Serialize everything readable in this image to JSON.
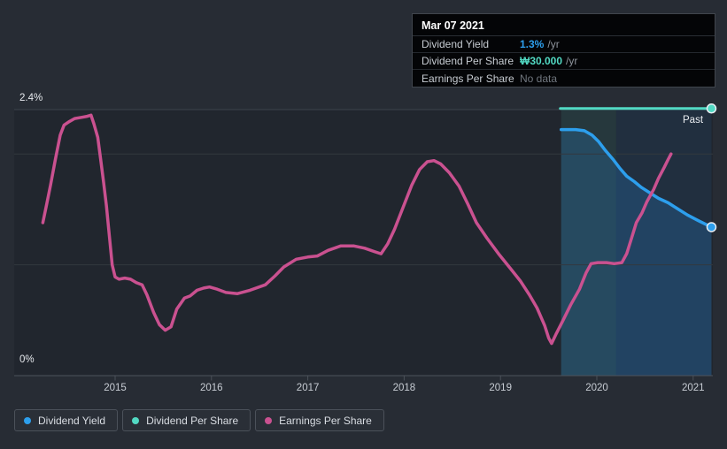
{
  "colors": {
    "dividend_yield": "#2d9fed",
    "dividend_per_share": "#52d9c3",
    "earnings_per_share": "#ca5190",
    "no_data": "#70767e",
    "dividend_yield_area": "rgba(43,140,225,0.22)",
    "region_past_early": "rgba(86,220,193,0.10)",
    "region_final_year": "rgba(43,130,220,0.10)"
  },
  "tooltip": {
    "title": "Mar 07 2021",
    "rows": [
      {
        "label": "Dividend Yield",
        "value": "1.3%",
        "unit": "/yr",
        "color_key": "dividend_yield",
        "bold": true
      },
      {
        "label": "Dividend Per Share",
        "value": "₩30.000",
        "unit": "/yr",
        "color_key": "dividend_per_share",
        "bold": true
      },
      {
        "label": "Earnings Per Share",
        "value": "No data",
        "unit": "",
        "color_key": "no_data",
        "bold": false
      }
    ]
  },
  "past_label": "Past",
  "legend": [
    {
      "label": "Dividend Yield",
      "key": "dividend_yield"
    },
    {
      "label": "Dividend Per Share",
      "key": "dividend_per_share"
    },
    {
      "label": "Earnings Per Share",
      "key": "earnings_per_share"
    }
  ],
  "chart_data": {
    "type": "line",
    "x_axis": {
      "ticks": [
        2015,
        2016,
        2017,
        2018,
        2019,
        2020,
        2021
      ],
      "range": [
        2013.95,
        2021.2
      ]
    },
    "y_axis": {
      "top_label": "2.4%",
      "bottom_label": "0%",
      "range_pct": [
        0,
        2.4
      ],
      "gridlines_pct": [
        2.4,
        2,
        1,
        0
      ]
    },
    "regions": [
      {
        "name": "past-early",
        "from": 2019.63,
        "to": 2020.2,
        "color_key": "region_past_early"
      },
      {
        "name": "past-final-year",
        "from": 2020.2,
        "to": 2021.19,
        "color_key": "region_final_year"
      }
    ],
    "series": [
      {
        "name": "Dividend Yield",
        "key": "dividend_yield",
        "width": 3.5,
        "end_dot": true,
        "area": true,
        "points": [
          [
            2019.63,
            2.22
          ],
          [
            2019.78,
            2.22
          ],
          [
            2019.87,
            2.21
          ],
          [
            2019.95,
            2.17
          ],
          [
            2020.02,
            2.11
          ],
          [
            2020.09,
            2.03
          ],
          [
            2020.17,
            1.95
          ],
          [
            2020.24,
            1.87
          ],
          [
            2020.31,
            1.8
          ],
          [
            2020.39,
            1.75
          ],
          [
            2020.46,
            1.7
          ],
          [
            2020.55,
            1.65
          ],
          [
            2020.64,
            1.6
          ],
          [
            2020.74,
            1.56
          ],
          [
            2020.83,
            1.51
          ],
          [
            2020.94,
            1.45
          ],
          [
            2021.05,
            1.4
          ],
          [
            2021.19,
            1.34
          ]
        ]
      },
      {
        "name": "Dividend Per Share",
        "key": "dividend_per_share",
        "width": 3,
        "end_dot": true,
        "area": false,
        "actual_value": "₩30.000 /yr",
        "points": [
          [
            2019.62,
            2.41
          ],
          [
            2021.19,
            2.41
          ]
        ]
      },
      {
        "name": "Earnings Per Share",
        "key": "earnings_per_share",
        "width": 3.5,
        "end_dot": false,
        "area": false,
        "points": [
          [
            2014.25,
            1.38
          ],
          [
            2014.29,
            1.55
          ],
          [
            2014.33,
            1.72
          ],
          [
            2014.38,
            1.95
          ],
          [
            2014.43,
            2.17
          ],
          [
            2014.47,
            2.26
          ],
          [
            2014.52,
            2.29
          ],
          [
            2014.58,
            2.32
          ],
          [
            2014.65,
            2.33
          ],
          [
            2014.71,
            2.34
          ],
          [
            2014.75,
            2.35
          ],
          [
            2014.78,
            2.27
          ],
          [
            2014.82,
            2.15
          ],
          [
            2014.85,
            1.95
          ],
          [
            2014.88,
            1.75
          ],
          [
            2014.91,
            1.53
          ],
          [
            2014.94,
            1.26
          ],
          [
            2014.97,
            1.0
          ],
          [
            2015.0,
            0.89
          ],
          [
            2015.04,
            0.87
          ],
          [
            2015.1,
            0.88
          ],
          [
            2015.16,
            0.87
          ],
          [
            2015.22,
            0.84
          ],
          [
            2015.28,
            0.82
          ],
          [
            2015.33,
            0.73
          ],
          [
            2015.4,
            0.57
          ],
          [
            2015.46,
            0.46
          ],
          [
            2015.52,
            0.41
          ],
          [
            2015.58,
            0.44
          ],
          [
            2015.64,
            0.6
          ],
          [
            2015.72,
            0.7
          ],
          [
            2015.78,
            0.72
          ],
          [
            2015.85,
            0.77
          ],
          [
            2015.92,
            0.79
          ],
          [
            2015.98,
            0.8
          ],
          [
            2016.06,
            0.78
          ],
          [
            2016.15,
            0.75
          ],
          [
            2016.27,
            0.74
          ],
          [
            2016.4,
            0.77
          ],
          [
            2016.56,
            0.82
          ],
          [
            2016.66,
            0.9
          ],
          [
            2016.75,
            0.98
          ],
          [
            2016.88,
            1.05
          ],
          [
            2017.0,
            1.07
          ],
          [
            2017.1,
            1.08
          ],
          [
            2017.21,
            1.13
          ],
          [
            2017.34,
            1.17
          ],
          [
            2017.48,
            1.17
          ],
          [
            2017.59,
            1.15
          ],
          [
            2017.69,
            1.12
          ],
          [
            2017.76,
            1.1
          ],
          [
            2017.83,
            1.19
          ],
          [
            2017.9,
            1.32
          ],
          [
            2017.99,
            1.52
          ],
          [
            2018.08,
            1.72
          ],
          [
            2018.16,
            1.86
          ],
          [
            2018.24,
            1.93
          ],
          [
            2018.31,
            1.94
          ],
          [
            2018.38,
            1.91
          ],
          [
            2018.47,
            1.83
          ],
          [
            2018.57,
            1.71
          ],
          [
            2018.66,
            1.55
          ],
          [
            2018.75,
            1.38
          ],
          [
            2018.86,
            1.24
          ],
          [
            2018.98,
            1.1
          ],
          [
            2019.1,
            0.97
          ],
          [
            2019.21,
            0.85
          ],
          [
            2019.3,
            0.73
          ],
          [
            2019.38,
            0.61
          ],
          [
            2019.46,
            0.45
          ],
          [
            2019.5,
            0.34
          ],
          [
            2019.53,
            0.29
          ],
          [
            2019.58,
            0.38
          ],
          [
            2019.65,
            0.5
          ],
          [
            2019.73,
            0.64
          ],
          [
            2019.82,
            0.78
          ],
          [
            2019.89,
            0.93
          ],
          [
            2019.94,
            1.01
          ],
          [
            2020.01,
            1.02
          ],
          [
            2020.1,
            1.02
          ],
          [
            2020.18,
            1.01
          ],
          [
            2020.26,
            1.02
          ],
          [
            2020.31,
            1.1
          ],
          [
            2020.36,
            1.24
          ],
          [
            2020.41,
            1.38
          ],
          [
            2020.47,
            1.47
          ],
          [
            2020.52,
            1.57
          ],
          [
            2020.59,
            1.68
          ],
          [
            2020.64,
            1.78
          ],
          [
            2020.7,
            1.88
          ],
          [
            2020.74,
            1.95
          ],
          [
            2020.77,
            2.0
          ]
        ]
      }
    ]
  }
}
